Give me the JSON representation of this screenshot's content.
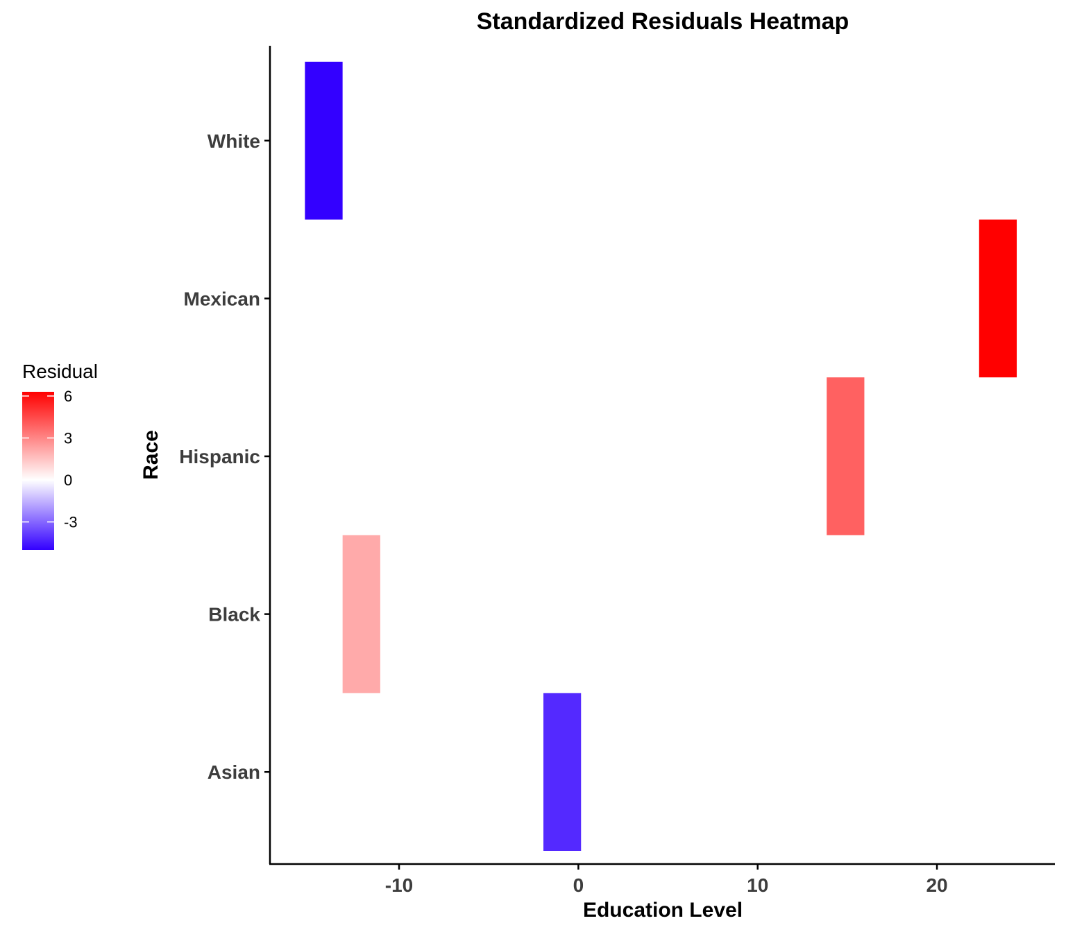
{
  "chart_data": {
    "type": "heatmap",
    "title": "Standardized Residuals Heatmap",
    "xlabel": "Education Level",
    "ylabel": "Race",
    "categories": [
      "Asian",
      "Black",
      "Hispanic",
      "Mexican",
      "White"
    ],
    "xlim": [
      -17.2,
      26.5
    ],
    "x_ticks": [
      -10,
      0,
      10,
      20
    ],
    "cells": [
      {
        "category": "White",
        "x": -14.2,
        "residual": -5.0
      },
      {
        "category": "Mexican",
        "x": 23.4,
        "residual": 6.3
      },
      {
        "category": "Hispanic",
        "x": 14.9,
        "residual": 3.9
      },
      {
        "category": "Black",
        "x": -12.1,
        "residual": 2.1
      },
      {
        "category": "Asian",
        "x": -0.9,
        "residual": -4.2
      }
    ],
    "tile_width": 2.1,
    "legend": {
      "title": "Residual",
      "position": "left",
      "ticks": [
        6,
        3,
        0,
        -3
      ],
      "range": [
        -5.0,
        6.3
      ],
      "low_color": "#3300ff",
      "mid_color": "#ffffff",
      "high_color": "#ff0000"
    },
    "grid": false
  }
}
